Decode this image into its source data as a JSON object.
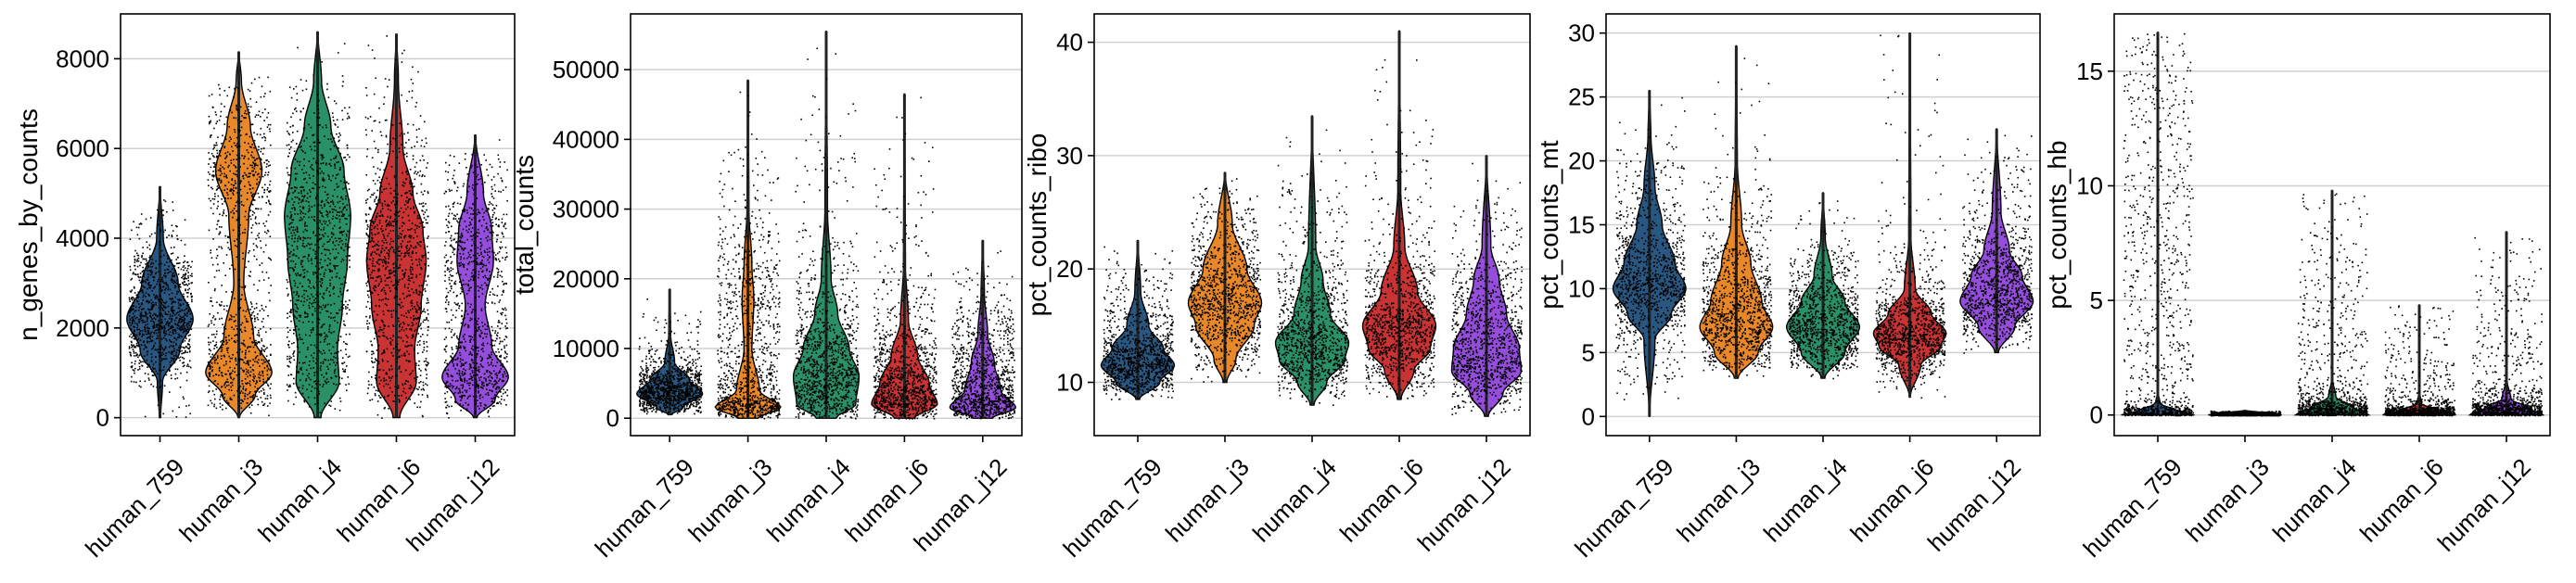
{
  "colors": {
    "human_759": "#1f4e79",
    "human_j3": "#e8821e",
    "human_j4": "#1f8a5f",
    "human_j6": "#c62828",
    "human_j12": "#8e44d9",
    "jitter": "#000000",
    "grid": "#d0d0d0"
  },
  "chart_data": [
    {
      "type": "violin",
      "ylabel": "n_genes_by_counts",
      "ylim": [
        -400,
        9000
      ],
      "yticks": [
        0,
        2000,
        4000,
        6000,
        8000
      ],
      "grid": true,
      "categories": [
        "human_759",
        "human_j3",
        "human_j4",
        "human_j6",
        "human_j12"
      ],
      "series": [
        {
          "category": "human_759",
          "min": 0,
          "max": 5150,
          "median": 2200,
          "profile": [
            [
              0,
              0.02
            ],
            [
              800,
              0.08
            ],
            [
              1500,
              0.6
            ],
            [
              2200,
              1.0
            ],
            [
              3000,
              0.55
            ],
            [
              4000,
              0.1
            ],
            [
              5150,
              0.01
            ]
          ]
        },
        {
          "category": "human_j3",
          "min": 0,
          "max": 8150,
          "median": 1200,
          "profile": [
            [
              0,
              0.02
            ],
            [
              500,
              0.5
            ],
            [
              1000,
              1.0
            ],
            [
              1800,
              0.45
            ],
            [
              3000,
              0.15
            ],
            [
              4500,
              0.3
            ],
            [
              5500,
              0.7
            ],
            [
              6500,
              0.35
            ],
            [
              7500,
              0.08
            ],
            [
              8150,
              0.01
            ]
          ]
        },
        {
          "category": "human_j4",
          "min": 0,
          "max": 8600,
          "median": 3500,
          "profile": [
            [
              0,
              0.1
            ],
            [
              800,
              0.65
            ],
            [
              1500,
              0.6
            ],
            [
              2500,
              0.75
            ],
            [
              3500,
              0.9
            ],
            [
              4500,
              1.0
            ],
            [
              5500,
              0.8
            ],
            [
              6500,
              0.4
            ],
            [
              7500,
              0.12
            ],
            [
              8600,
              0.01
            ]
          ]
        },
        {
          "category": "human_j6",
          "min": 0,
          "max": 8550,
          "median": 2900,
          "profile": [
            [
              0,
              0.1
            ],
            [
              800,
              0.6
            ],
            [
              1500,
              0.55
            ],
            [
              2500,
              0.75
            ],
            [
              3500,
              0.9
            ],
            [
              4200,
              0.8
            ],
            [
              5000,
              0.5
            ],
            [
              6000,
              0.2
            ],
            [
              7500,
              0.06
            ],
            [
              8550,
              0.01
            ]
          ]
        },
        {
          "category": "human_j12",
          "min": 0,
          "max": 6300,
          "median": 1000,
          "profile": [
            [
              0,
              0.05
            ],
            [
              400,
              0.6
            ],
            [
              900,
              1.0
            ],
            [
              1600,
              0.5
            ],
            [
              2500,
              0.3
            ],
            [
              3500,
              0.55
            ],
            [
              4200,
              0.5
            ],
            [
              5000,
              0.25
            ],
            [
              6300,
              0.01
            ]
          ]
        }
      ]
    },
    {
      "type": "violin",
      "ylabel": "total_counts",
      "ylim": [
        -2500,
        58000
      ],
      "yticks": [
        0,
        10000,
        20000,
        30000,
        40000,
        50000
      ],
      "grid": true,
      "categories": [
        "human_759",
        "human_j3",
        "human_j4",
        "human_j6",
        "human_j12"
      ],
      "series": [
        {
          "category": "human_759",
          "min": 500,
          "max": 18500,
          "median": 3500,
          "profile": [
            [
              500,
              0.05
            ],
            [
              1500,
              0.4
            ],
            [
              3500,
              1.0
            ],
            [
              5500,
              0.6
            ],
            [
              8000,
              0.15
            ],
            [
              12000,
              0.03
            ],
            [
              18500,
              0.005
            ]
          ]
        },
        {
          "category": "human_j3",
          "min": 0,
          "max": 48500,
          "median": 2000,
          "profile": [
            [
              0,
              0.3
            ],
            [
              1500,
              1.0
            ],
            [
              4000,
              0.35
            ],
            [
              10000,
              0.12
            ],
            [
              17000,
              0.18
            ],
            [
              22000,
              0.12
            ],
            [
              30000,
              0.03
            ],
            [
              48500,
              0.005
            ]
          ]
        },
        {
          "category": "human_j4",
          "min": 0,
          "max": 55500,
          "median": 6000,
          "profile": [
            [
              0,
              0.3
            ],
            [
              2000,
              0.9
            ],
            [
              6000,
              1.0
            ],
            [
              10000,
              0.7
            ],
            [
              15000,
              0.35
            ],
            [
              20000,
              0.15
            ],
            [
              30000,
              0.04
            ],
            [
              55500,
              0.005
            ]
          ]
        },
        {
          "category": "human_j6",
          "min": 0,
          "max": 46500,
          "median": 3000,
          "profile": [
            [
              0,
              0.3
            ],
            [
              2000,
              1.0
            ],
            [
              5000,
              0.75
            ],
            [
              9000,
              0.4
            ],
            [
              14000,
              0.12
            ],
            [
              22000,
              0.03
            ],
            [
              46500,
              0.005
            ]
          ]
        },
        {
          "category": "human_j12",
          "min": 0,
          "max": 25500,
          "median": 2000,
          "profile": [
            [
              0,
              0.3
            ],
            [
              1500,
              1.0
            ],
            [
              4000,
              0.55
            ],
            [
              8000,
              0.35
            ],
            [
              12000,
              0.15
            ],
            [
              18000,
              0.05
            ],
            [
              25500,
              0.005
            ]
          ]
        }
      ]
    },
    {
      "type": "violin",
      "ylabel": "pct_counts_ribo",
      "ylim": [
        5.3,
        42.5
      ],
      "yticks": [
        10,
        20,
        30,
        40
      ],
      "grid": true,
      "categories": [
        "human_759",
        "human_j3",
        "human_j4",
        "human_j6",
        "human_j12"
      ],
      "series": [
        {
          "category": "human_759",
          "min": 8.5,
          "max": 22.5,
          "median": 12,
          "profile": [
            [
              8.5,
              0.05
            ],
            [
              10,
              0.6
            ],
            [
              11.5,
              1.0
            ],
            [
              13,
              0.7
            ],
            [
              15,
              0.3
            ],
            [
              18,
              0.08
            ],
            [
              22.5,
              0.01
            ]
          ]
        },
        {
          "category": "human_j3",
          "min": 10,
          "max": 28.5,
          "median": 17,
          "profile": [
            [
              10,
              0.05
            ],
            [
              12,
              0.3
            ],
            [
              15,
              0.8
            ],
            [
              17,
              1.0
            ],
            [
              20,
              0.6
            ],
            [
              24,
              0.2
            ],
            [
              28.5,
              0.01
            ]
          ]
        },
        {
          "category": "human_j4",
          "min": 8,
          "max": 33.5,
          "median": 13,
          "profile": [
            [
              8,
              0.05
            ],
            [
              10,
              0.4
            ],
            [
              12,
              0.9
            ],
            [
              13.5,
              1.0
            ],
            [
              16,
              0.5
            ],
            [
              19,
              0.3
            ],
            [
              22,
              0.1
            ],
            [
              33.5,
              0.005
            ]
          ]
        },
        {
          "category": "human_j6",
          "min": 8.5,
          "max": 41,
          "median": 15,
          "profile": [
            [
              8.5,
              0.05
            ],
            [
              11,
              0.4
            ],
            [
              13,
              0.85
            ],
            [
              15,
              1.0
            ],
            [
              18,
              0.5
            ],
            [
              22,
              0.15
            ],
            [
              27,
              0.04
            ],
            [
              41,
              0.005
            ]
          ]
        },
        {
          "category": "human_j12",
          "min": 7,
          "max": 30,
          "median": 12,
          "profile": [
            [
              7,
              0.05
            ],
            [
              9,
              0.45
            ],
            [
              11,
              0.95
            ],
            [
              13,
              0.9
            ],
            [
              16,
              0.55
            ],
            [
              19,
              0.35
            ],
            [
              22,
              0.12
            ],
            [
              30,
              0.005
            ]
          ]
        }
      ]
    },
    {
      "type": "violin",
      "ylabel": "pct_counts_mt",
      "ylim": [
        -1.5,
        31.5
      ],
      "yticks": [
        0,
        5,
        10,
        15,
        20,
        25,
        30
      ],
      "grid": true,
      "categories": [
        "human_759",
        "human_j3",
        "human_j4",
        "human_j6",
        "human_j12"
      ],
      "series": [
        {
          "category": "human_759",
          "min": 0,
          "max": 25.5,
          "median": 10,
          "profile": [
            [
              0,
              0.005
            ],
            [
              6,
              0.15
            ],
            [
              8,
              0.6
            ],
            [
              10,
              1.0
            ],
            [
              12,
              0.7
            ],
            [
              15,
              0.35
            ],
            [
              18,
              0.15
            ],
            [
              22,
              0.04
            ],
            [
              25.5,
              0.005
            ]
          ]
        },
        {
          "category": "human_j3",
          "min": 3,
          "max": 29,
          "median": 7.5,
          "profile": [
            [
              3,
              0.05
            ],
            [
              5,
              0.6
            ],
            [
              7,
              1.0
            ],
            [
              9,
              0.7
            ],
            [
              12,
              0.4
            ],
            [
              15,
              0.15
            ],
            [
              20,
              0.03
            ],
            [
              29,
              0.005
            ]
          ]
        },
        {
          "category": "human_j4",
          "min": 3,
          "max": 17.5,
          "median": 7,
          "profile": [
            [
              3,
              0.05
            ],
            [
              5,
              0.6
            ],
            [
              7,
              1.0
            ],
            [
              9,
              0.6
            ],
            [
              11,
              0.25
            ],
            [
              14,
              0.06
            ],
            [
              17.5,
              0.005
            ]
          ]
        },
        {
          "category": "human_j6",
          "min": 1.5,
          "max": 30,
          "median": 6.5,
          "profile": [
            [
              1.5,
              0.01
            ],
            [
              4,
              0.3
            ],
            [
              5.5,
              0.85
            ],
            [
              6.5,
              1.0
            ],
            [
              8,
              0.6
            ],
            [
              10,
              0.15
            ],
            [
              14,
              0.03
            ],
            [
              30,
              0.003
            ]
          ]
        },
        {
          "category": "human_j12",
          "min": 5,
          "max": 22.5,
          "median": 9.5,
          "profile": [
            [
              5,
              0.05
            ],
            [
              7,
              0.5
            ],
            [
              9,
              1.0
            ],
            [
              11,
              0.7
            ],
            [
              13,
              0.35
            ],
            [
              16,
              0.12
            ],
            [
              22.5,
              0.005
            ]
          ]
        }
      ]
    },
    {
      "type": "violin",
      "ylabel": "pct_counts_hb",
      "ylim": [
        -0.9,
        17.5
      ],
      "yticks": [
        0,
        5,
        10,
        15
      ],
      "grid": true,
      "categories": [
        "human_759",
        "human_j3",
        "human_j4",
        "human_j6",
        "human_j12"
      ],
      "series": [
        {
          "category": "human_759",
          "min": 0,
          "max": 16.7,
          "median": 0.05,
          "profile": [
            [
              0,
              1.0
            ],
            [
              0.2,
              0.5
            ],
            [
              0.5,
              0.06
            ],
            [
              1,
              0.01
            ],
            [
              16.7,
              0.002
            ]
          ]
        },
        {
          "category": "human_j3",
          "min": 0,
          "max": 0.2,
          "median": 0.02,
          "profile": [
            [
              0,
              1.0
            ],
            [
              0.1,
              0.5
            ],
            [
              0.2,
              0.02
            ]
          ]
        },
        {
          "category": "human_j4",
          "min": 0,
          "max": 9.8,
          "median": 0.1,
          "profile": [
            [
              0,
              1.0
            ],
            [
              0.3,
              0.6
            ],
            [
              0.8,
              0.1
            ],
            [
              1.5,
              0.02
            ],
            [
              9.8,
              0.002
            ]
          ]
        },
        {
          "category": "human_j6",
          "min": 0,
          "max": 4.8,
          "median": 0.05,
          "profile": [
            [
              0,
              1.0
            ],
            [
              0.2,
              0.5
            ],
            [
              0.5,
              0.06
            ],
            [
              1,
              0.01
            ],
            [
              4.8,
              0.002
            ]
          ]
        },
        {
          "category": "human_j12",
          "min": 0,
          "max": 8,
          "median": 0.1,
          "profile": [
            [
              0,
              1.0
            ],
            [
              0.3,
              0.6
            ],
            [
              0.7,
              0.12
            ],
            [
              1.5,
              0.02
            ],
            [
              8,
              0.002
            ]
          ]
        }
      ]
    }
  ]
}
